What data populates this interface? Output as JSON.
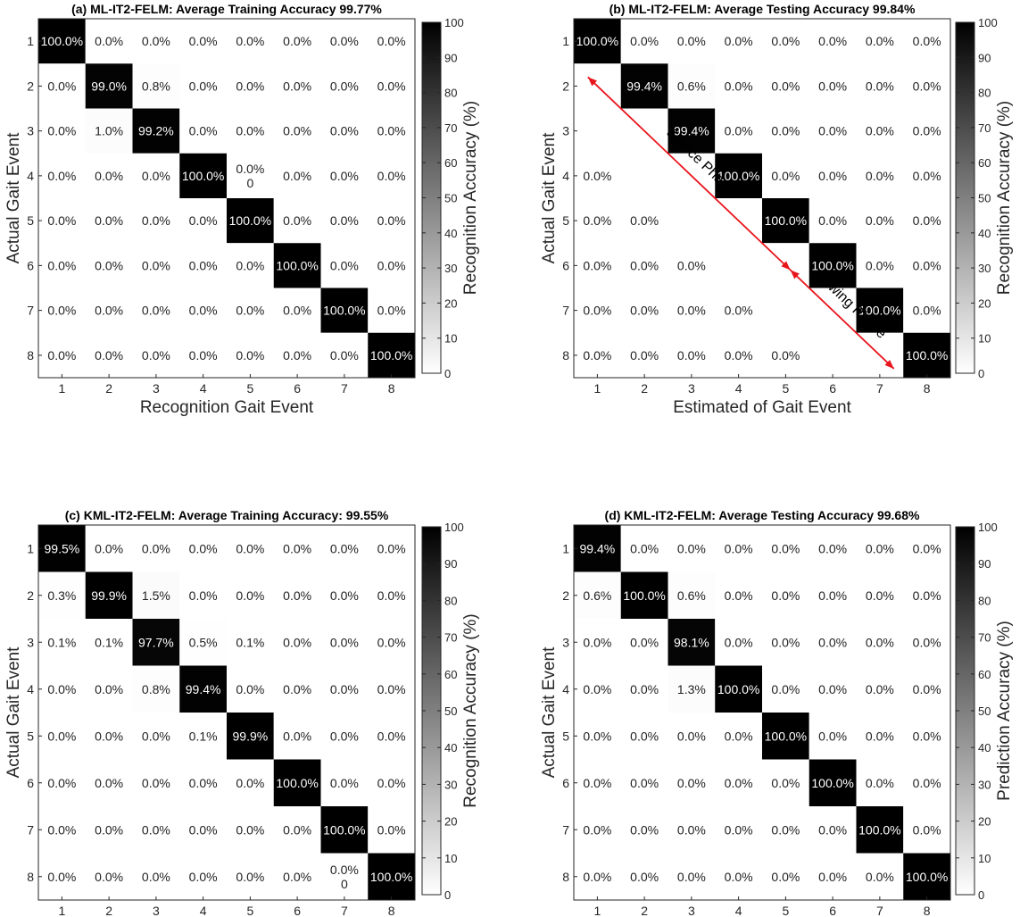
{
  "chart_data": [
    {
      "type": "heatmap",
      "title": "(a) ML-IT2-FELM: Average Training Accuracy 99.77%",
      "xlabel": "Recognition Gait Event",
      "ylabel": "Actual Gait Event",
      "x_categories": [
        "1",
        "2",
        "3",
        "4",
        "5",
        "6",
        "7",
        "8"
      ],
      "y_categories": [
        "1",
        "2",
        "3",
        "4",
        "5",
        "6",
        "7",
        "8"
      ],
      "colorbar_label": "Recognition Accuracy (%)",
      "colorbar_ticks": [
        "0",
        "10",
        "20",
        "30",
        "40",
        "50",
        "60",
        "70",
        "80",
        "90",
        "100"
      ],
      "clim": [
        0,
        100
      ],
      "values": [
        [
          100,
          0,
          0,
          0,
          0,
          0,
          0,
          0
        ],
        [
          0,
          99.0,
          0.8,
          0,
          0,
          0,
          0,
          0
        ],
        [
          0,
          1.0,
          99.2,
          0,
          0,
          0,
          0,
          0
        ],
        [
          0,
          0,
          0,
          100,
          0,
          0,
          0,
          0
        ],
        [
          0,
          0,
          0,
          0,
          100,
          0,
          0,
          0
        ],
        [
          0,
          0,
          0,
          0,
          0,
          100,
          0,
          0
        ],
        [
          0,
          0,
          0,
          0,
          0,
          0,
          100,
          0
        ],
        [
          0,
          0,
          0,
          0,
          0,
          0,
          0,
          100
        ]
      ],
      "cell_labels": [
        [
          "100.0%",
          "0.0%",
          "0.0%",
          "0.0%",
          "0.0%",
          "0.0%",
          "0.0%",
          "0.0%"
        ],
        [
          "0.0%",
          "99.0%",
          "0.8%",
          "0.0%",
          "0.0%",
          "0.0%",
          "0.0%",
          "0.0%"
        ],
        [
          "0.0%",
          "1.0%",
          "99.2%",
          "0.0%",
          "0.0%",
          "0.0%",
          "0.0%",
          "0.0%"
        ],
        [
          "0.0%",
          "0.0%",
          "0.0%",
          "100.0%",
          "0.0%\n0",
          "0.0%",
          "0.0%",
          "0.0%"
        ],
        [
          "0.0%",
          "0.0%",
          "0.0%",
          "0.0%",
          "100.0%",
          "0.0%",
          "0.0%",
          "0.0%"
        ],
        [
          "0.0%",
          "0.0%",
          "0.0%",
          "0.0%",
          "0.0%",
          "100.0%",
          "0.0%",
          "0.0%"
        ],
        [
          "0.0%",
          "0.0%",
          "0.0%",
          "0.0%",
          "0.0%",
          "0.0%",
          "100.0%",
          "0.0%"
        ],
        [
          "0.0%",
          "0.0%",
          "0.0%",
          "0.0%",
          "0.0%",
          "0.0%",
          "0.0%",
          "100.0%"
        ]
      ],
      "annotations": []
    },
    {
      "type": "heatmap",
      "title": "(b) ML-IT2-FELM: Average Testing Accuracy 99.84%",
      "xlabel": "Estimated of Gait Event",
      "ylabel": "Actual Gait Event",
      "x_categories": [
        "1",
        "2",
        "3",
        "4",
        "5",
        "6",
        "7",
        "8"
      ],
      "y_categories": [
        "1",
        "2",
        "3",
        "4",
        "5",
        "6",
        "7",
        "8"
      ],
      "colorbar_label": "Recognition Accuracy (%)",
      "colorbar_ticks": [
        "0",
        "10",
        "20",
        "30",
        "40",
        "50",
        "60",
        "70",
        "80",
        "90",
        "100"
      ],
      "clim": [
        0,
        100
      ],
      "values": [
        [
          100,
          0,
          0,
          0,
          0,
          0,
          0,
          0
        ],
        [
          null,
          99.4,
          0.6,
          0,
          0,
          0,
          0,
          0
        ],
        [
          null,
          null,
          99.4,
          0,
          0,
          0,
          0,
          0
        ],
        [
          0,
          null,
          null,
          100,
          0,
          0,
          0,
          0
        ],
        [
          0,
          0,
          null,
          null,
          100,
          0,
          0,
          0
        ],
        [
          0,
          0,
          0,
          null,
          null,
          100,
          0,
          0
        ],
        [
          0,
          0,
          0,
          0,
          null,
          null,
          100,
          0
        ],
        [
          0,
          0,
          0,
          0,
          0,
          null,
          null,
          100
        ]
      ],
      "cell_labels": [
        [
          "100.0%",
          "0.0%",
          "0.0%",
          "0.0%",
          "0.0%",
          "0.0%",
          "0.0%",
          "0.0%"
        ],
        [
          "",
          "99.4%",
          "0.6%",
          "0.0%",
          "0.0%",
          "0.0%",
          "0.0%",
          "0.0%"
        ],
        [
          "",
          "",
          "99.4%",
          "0.0%",
          "0.0%",
          "0.0%",
          "0.0%",
          "0.0%"
        ],
        [
          "0.0%",
          "",
          "",
          "100.0%",
          "0.0%",
          "0.0%",
          "0.0%",
          "0.0%"
        ],
        [
          "0.0%",
          "0.0%",
          "",
          "",
          "100.0%",
          "0.0%",
          "0.0%",
          "0.0%"
        ],
        [
          "0.0%",
          "0.0%",
          "0.0%",
          "",
          "",
          "100.0%",
          "0.0%",
          "0.0%"
        ],
        [
          "0.0%",
          "0.0%",
          "0.0%",
          "0.0%",
          "",
          "",
          "100.0%",
          "0.0%"
        ],
        [
          "0.0%",
          "0.0%",
          "0.0%",
          "0.0%",
          "0.0%",
          "",
          "",
          "100.0%"
        ]
      ],
      "annotations": [
        {
          "text": "Stance Phase",
          "from": [
            0.8,
            1.8
          ],
          "to": [
            5.1,
            6.1
          ]
        },
        {
          "text": "Swing Phase",
          "from": [
            5.1,
            6.1
          ],
          "to": [
            7.3,
            8.3
          ]
        }
      ]
    },
    {
      "type": "heatmap",
      "title": "(c) KML-IT2-FELM: Average Training Accuracy: 99.55%",
      "xlabel": "Estimated Gait Event",
      "ylabel": "Actual Gait Event",
      "x_categories": [
        "1",
        "2",
        "3",
        "4",
        "5",
        "6",
        "7",
        "8"
      ],
      "y_categories": [
        "1",
        "2",
        "3",
        "4",
        "5",
        "6",
        "7",
        "8"
      ],
      "colorbar_label": "Recognition Accuracy (%)",
      "colorbar_ticks": [
        "0",
        "10",
        "20",
        "30",
        "40",
        "50",
        "60",
        "70",
        "80",
        "90",
        "100"
      ],
      "clim": [
        0,
        100
      ],
      "values": [
        [
          99.5,
          0,
          0,
          0,
          0,
          0,
          0,
          0
        ],
        [
          0.3,
          99.9,
          1.5,
          0,
          0,
          0,
          0,
          0
        ],
        [
          0.1,
          0.1,
          97.7,
          0.5,
          0.1,
          0,
          0,
          0
        ],
        [
          0,
          0,
          0.8,
          99.4,
          0,
          0,
          0,
          0
        ],
        [
          0,
          0,
          0,
          0.1,
          99.9,
          0,
          0,
          0
        ],
        [
          0,
          0,
          0,
          0,
          0,
          100,
          0,
          0
        ],
        [
          0,
          0,
          0,
          0,
          0,
          0,
          100,
          0
        ],
        [
          0,
          0,
          0,
          0,
          0,
          0,
          0,
          100
        ]
      ],
      "cell_labels": [
        [
          "99.5%",
          "0.0%",
          "0.0%",
          "0.0%",
          "0.0%",
          "0.0%",
          "0.0%",
          "0.0%"
        ],
        [
          "0.3%",
          "99.9%",
          "1.5%",
          "0.0%",
          "0.0%",
          "0.0%",
          "0.0%",
          "0.0%"
        ],
        [
          "0.1%",
          "0.1%",
          "97.7%",
          "0.5%",
          "0.1%",
          "0.0%",
          "0.0%",
          "0.0%"
        ],
        [
          "0.0%",
          "0.0%",
          "0.8%",
          "99.4%",
          "0.0%",
          "0.0%",
          "0.0%",
          "0.0%"
        ],
        [
          "0.0%",
          "0.0%",
          "0.0%",
          "0.1%",
          "99.9%",
          "0.0%",
          "0.0%",
          "0.0%"
        ],
        [
          "0.0%",
          "0.0%",
          "0.0%",
          "0.0%",
          "0.0%",
          "100.0%",
          "0.0%",
          "0.0%"
        ],
        [
          "0.0%",
          "0.0%",
          "0.0%",
          "0.0%",
          "0.0%",
          "0.0%",
          "100.0%",
          "0.0%"
        ],
        [
          "0.0%",
          "0.0%",
          "0.0%",
          "0.0%",
          "0.0%",
          "0.0%",
          "0.0%\n0",
          "100.0%"
        ]
      ],
      "annotations": []
    },
    {
      "type": "heatmap",
      "title": "(d) KML-IT2-FELM: Average Testing Accuracy 99.68%",
      "xlabel": "Estimated Gait Event",
      "ylabel": "Actual Gait Event",
      "x_categories": [
        "1",
        "2",
        "3",
        "4",
        "5",
        "6",
        "7",
        "8"
      ],
      "y_categories": [
        "1",
        "2",
        "3",
        "4",
        "5",
        "6",
        "7",
        "8"
      ],
      "colorbar_label": "Prediction Accuracy (%)",
      "colorbar_ticks": [
        "0",
        "10",
        "20",
        "30",
        "40",
        "50",
        "60",
        "70",
        "80",
        "90",
        "100"
      ],
      "clim": [
        0,
        100
      ],
      "values": [
        [
          99.4,
          0,
          0,
          0,
          0,
          0,
          0,
          0
        ],
        [
          0.6,
          100,
          0.6,
          0,
          0,
          0,
          0,
          0
        ],
        [
          0,
          0,
          98.1,
          0,
          0,
          0,
          0,
          0
        ],
        [
          0,
          0,
          1.3,
          100,
          0,
          0,
          0,
          0
        ],
        [
          0,
          0,
          0,
          0,
          100,
          0,
          0,
          0
        ],
        [
          0,
          0,
          0,
          0,
          0,
          100,
          0,
          0
        ],
        [
          0,
          0,
          0,
          0,
          0,
          0,
          100,
          0
        ],
        [
          0,
          0,
          0,
          0,
          0,
          0,
          0,
          100
        ]
      ],
      "cell_labels": [
        [
          "99.4%",
          "0.0%",
          "0.0%",
          "0.0%",
          "0.0%",
          "0.0%",
          "0.0%",
          "0.0%"
        ],
        [
          "0.6%",
          "100.0%",
          "0.6%",
          "0.0%",
          "0.0%",
          "0.0%",
          "0.0%",
          "0.0%"
        ],
        [
          "0.0%",
          "0.0%",
          "98.1%",
          "0.0%",
          "0.0%",
          "0.0%",
          "0.0%",
          "0.0%"
        ],
        [
          "0.0%",
          "0.0%",
          "1.3%",
          "100.0%",
          "0.0%",
          "0.0%",
          "0.0%",
          "0.0%"
        ],
        [
          "0.0%",
          "0.0%",
          "0.0%",
          "0.0%",
          "100.0%",
          "0.0%",
          "0.0%",
          "0.0%"
        ],
        [
          "0.0%",
          "0.0%",
          "0.0%",
          "0.0%",
          "0.0%",
          "100.0%",
          "0.0%",
          "0.0%"
        ],
        [
          "0.0%",
          "0.0%",
          "0.0%",
          "0.0%",
          "0.0%",
          "0.0%",
          "100.0%",
          "0.0%"
        ],
        [
          "0.0%",
          "0.0%",
          "0.0%",
          "0.0%",
          "0.0%",
          "0.0%",
          "0.0%",
          "100.0%"
        ]
      ],
      "annotations": []
    }
  ]
}
